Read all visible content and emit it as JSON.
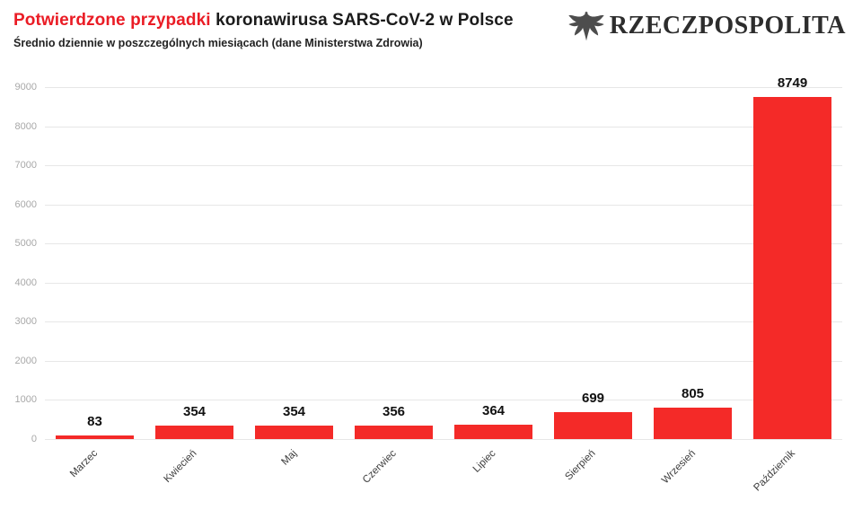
{
  "header": {
    "title_highlight": "Potwierdzone przypadki",
    "title_rest": " koronawirusa SARS-CoV-2 w Polsce",
    "subtitle": "Średnio dziennie w poszczególnych miesiącach (dane Ministerstwa Zdrowia)"
  },
  "logo": {
    "text": "RZECZPOSPOLITA",
    "icon": "eagle-icon"
  },
  "colors": {
    "accent_red": "#ea1c25",
    "bar_red": "#f42a28",
    "grid": "#e7e7e7",
    "axis_text": "#a8a8a8"
  },
  "chart_data": {
    "type": "bar",
    "title": "Potwierdzone przypadki koronawirusa SARS-CoV-2 w Polsce",
    "subtitle": "Średnio dziennie w poszczególnych miesiącach (dane Ministerstwa Zdrowia)",
    "categories": [
      "Marzec",
      "Kwiecień",
      "Maj",
      "Czerwiec",
      "Lipiec",
      "Sierpień",
      "Wrzesień",
      "Październik"
    ],
    "values": [
      83,
      354,
      354,
      356,
      364,
      699,
      805,
      8749
    ],
    "xlabel": "",
    "ylabel": "",
    "ylim": [
      0,
      9000
    ],
    "yticks": [
      0,
      1000,
      2000,
      3000,
      4000,
      5000,
      6000,
      7000,
      8000,
      9000
    ],
    "grid": true,
    "legend_position": "none",
    "bar_color": "#f42a28"
  }
}
